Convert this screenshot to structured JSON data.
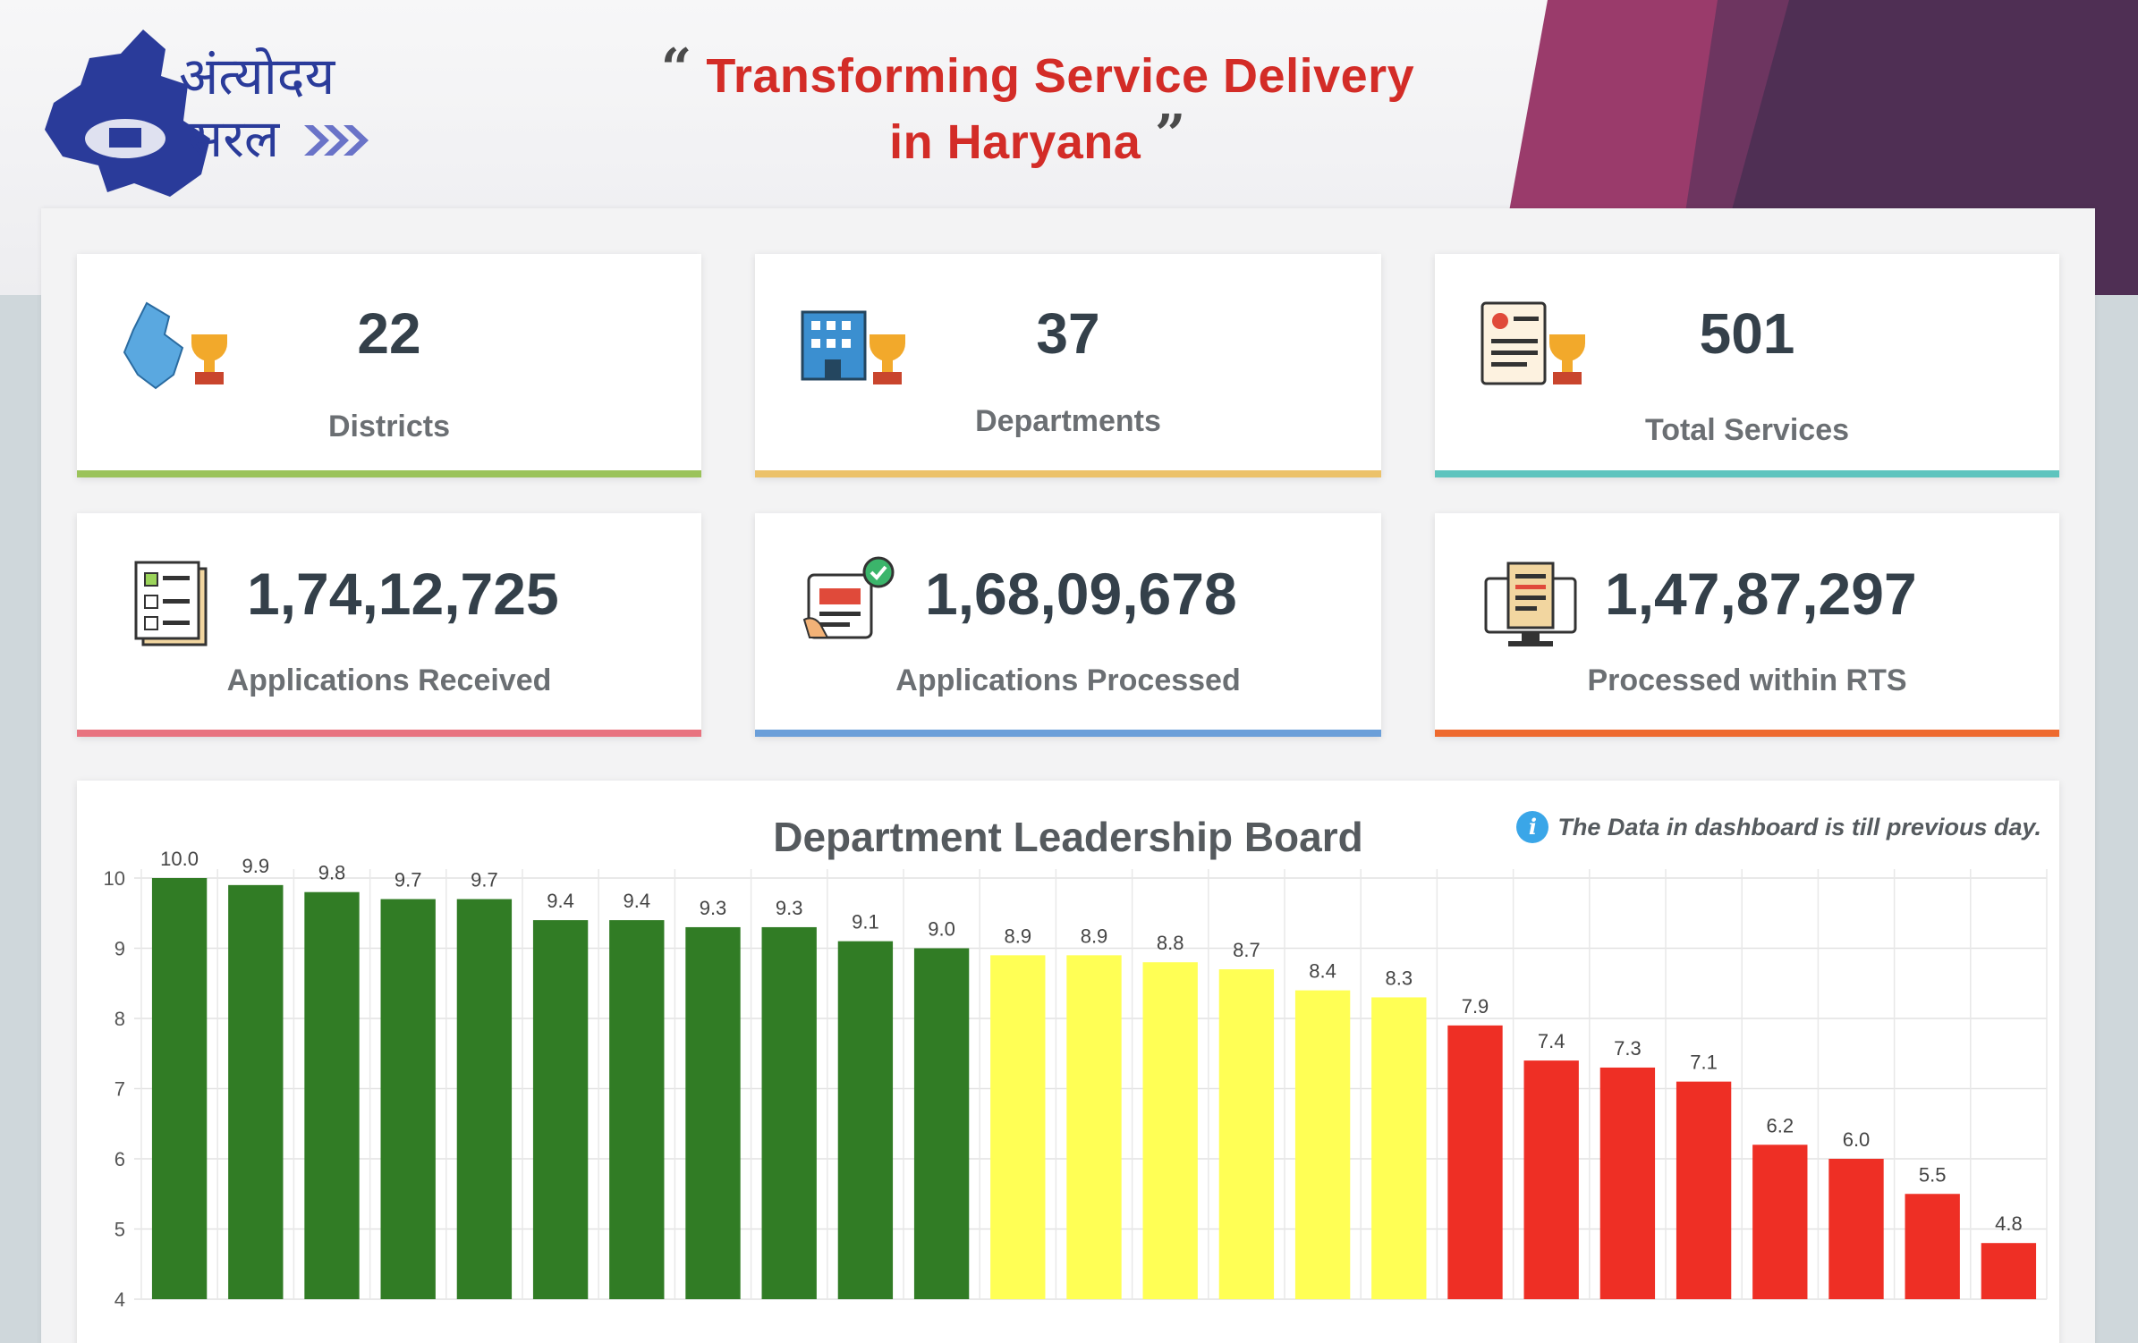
{
  "header": {
    "logo_line1": "अंत्योदय",
    "logo_line2": "सरल",
    "title_line1": "Transforming Service Delivery",
    "title_line2": "in Haryana",
    "open_quote": "“",
    "close_quote": "”"
  },
  "stats": [
    {
      "value": "22",
      "label": "Districts",
      "icon": "haryana-map-trophy-icon",
      "accent": "#9bc35a"
    },
    {
      "value": "37",
      "label": "Departments",
      "icon": "building-trophy-icon",
      "accent": "#ecc26a"
    },
    {
      "value": "501",
      "label": "Total Services",
      "icon": "document-trophy-icon",
      "accent": "#5ec4be"
    },
    {
      "value": "1,74,12,725",
      "label": "Applications Received",
      "icon": "checklist-icon",
      "accent": "#e8737f"
    },
    {
      "value": "1,68,09,678",
      "label": "Applications Processed",
      "icon": "processed-form-icon",
      "accent": "#6b9fd9"
    },
    {
      "value": "1,47,87,297",
      "label": "Processed within RTS",
      "icon": "computer-report-icon",
      "accent": "#ee6a2e"
    }
  ],
  "leaderboard": {
    "title": "Department Leadership Board",
    "info_note": "The Data in dashboard is till previous day."
  },
  "chart_data": {
    "type": "bar",
    "title": "Department Leadership Board",
    "xlabel": "",
    "ylabel": "",
    "ylim": [
      4,
      10
    ],
    "y_ticks": [
      4,
      5,
      6,
      7,
      8,
      9,
      10
    ],
    "grid": true,
    "values": [
      10.0,
      9.9,
      9.8,
      9.7,
      9.7,
      9.4,
      9.4,
      9.3,
      9.3,
      9.1,
      9.0,
      8.9,
      8.9,
      8.8,
      8.7,
      8.4,
      8.3,
      7.9,
      7.4,
      7.3,
      7.1,
      6.2,
      6.0,
      5.5,
      4.8
    ],
    "data_labels": [
      "10.0",
      "9.9",
      "9.8",
      "9.7",
      "9.7",
      "9.4",
      "9.4",
      "9.3",
      "9.3",
      "9.1",
      "9.0",
      "8.9",
      "8.9",
      "8.8",
      "8.7",
      "8.4",
      "8.3",
      "7.9",
      "7.4",
      "7.3",
      "7.1",
      "6.2",
      "6.0",
      "5.5",
      "4.8"
    ],
    "colors": {
      "high": "#317c25",
      "mid": "#ffff55",
      "low": "#ee2f25"
    },
    "color_thresholds": {
      "high_min": 9.0,
      "mid_min": 8.0
    }
  }
}
